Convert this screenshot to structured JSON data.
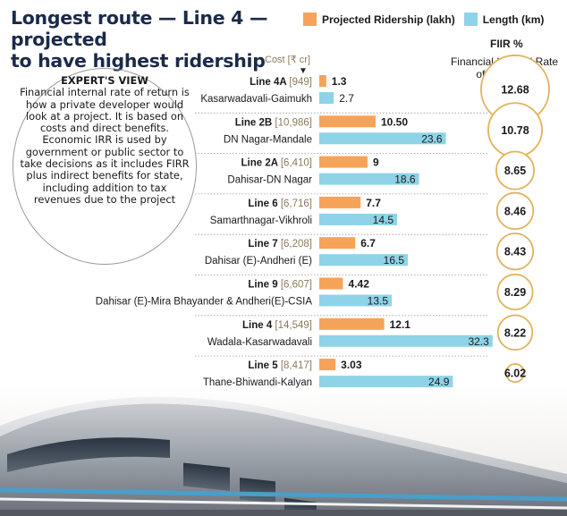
{
  "title_lines": [
    "Longest route — Line 4 — projected",
    "to have highest ridership"
  ],
  "legend": [
    {
      "label": "Projected Ridership (lakh)",
      "color": "#f6a35a"
    },
    {
      "label": "Length (km)",
      "color": "#8fd3e8"
    }
  ],
  "firr_header": "FIIR %",
  "firr_subtitle": "Financial Internal Rate of Return %",
  "cost_header": "Cost [₹ cr]",
  "cost_arrow": "▼",
  "expert": {
    "heading": "EXPERT'S VIEW",
    "body": "Financial internal rate of return is how a private developer would look at a project. It is based on costs and direct benefits. Economic IRR is used by government or public sector to take decisions as it includes FIRR plus indirect benefits for state, including addition to tax revenues due to the project"
  },
  "chart_data": {
    "type": "bar",
    "title": "Longest route — Line 4 — projected to have highest ridership",
    "orientation": "horizontal",
    "categories": [
      "Line 4A",
      "Line 2B",
      "Line 2A",
      "Line 6",
      "Line 7",
      "Line 9",
      "Line 4",
      "Line 5"
    ],
    "routes": [
      "Kasarwadavali-Gaimukh",
      "DN Nagar-Mandale",
      "Dahisar-DN Nagar",
      "Samarthnagar-Vikhroli",
      "Dahisar (E)-Andheri (E)",
      "Dahisar (E)-Mira Bhayander & Andheri(E)-CSIA",
      "Wadala-Kasarwadavali",
      "Thane-Bhiwandi-Kalyan"
    ],
    "costs": [
      "[949]",
      "[10,986]",
      "[6,410]",
      "[6,716]",
      "[6,208]",
      "[6,607]",
      "[14,549]",
      "[8,417]"
    ],
    "series": [
      {
        "name": "Projected Ridership (lakh)",
        "color": "#f6a35a",
        "values": [
          1.3,
          10.5,
          9,
          7.7,
          6.7,
          4.42,
          12.1,
          3.03
        ],
        "labels": [
          "1.3",
          "10.50",
          "9",
          "7.7",
          "6.7",
          "4.42",
          "12.1",
          "3.03"
        ]
      },
      {
        "name": "Length (km)",
        "color": "#8fd3e8",
        "values": [
          2.7,
          23.6,
          18.6,
          14.5,
          16.5,
          13.5,
          32.3,
          24.9
        ],
        "labels": [
          "2.7",
          "23.6",
          "18.6",
          "14.5",
          "16.5",
          "13.5",
          "32.3",
          "24.9"
        ]
      }
    ],
    "firr": [
      12.68,
      10.78,
      8.65,
      8.46,
      8.43,
      8.29,
      8.22,
      6.02
    ],
    "firr_labels": [
      "12.68",
      "10.78",
      "8.65",
      "8.46",
      "8.43",
      "8.29",
      "8.22",
      "6.02"
    ],
    "xlabel": "",
    "ylabel": "",
    "grid": false,
    "legend_position": "top"
  }
}
